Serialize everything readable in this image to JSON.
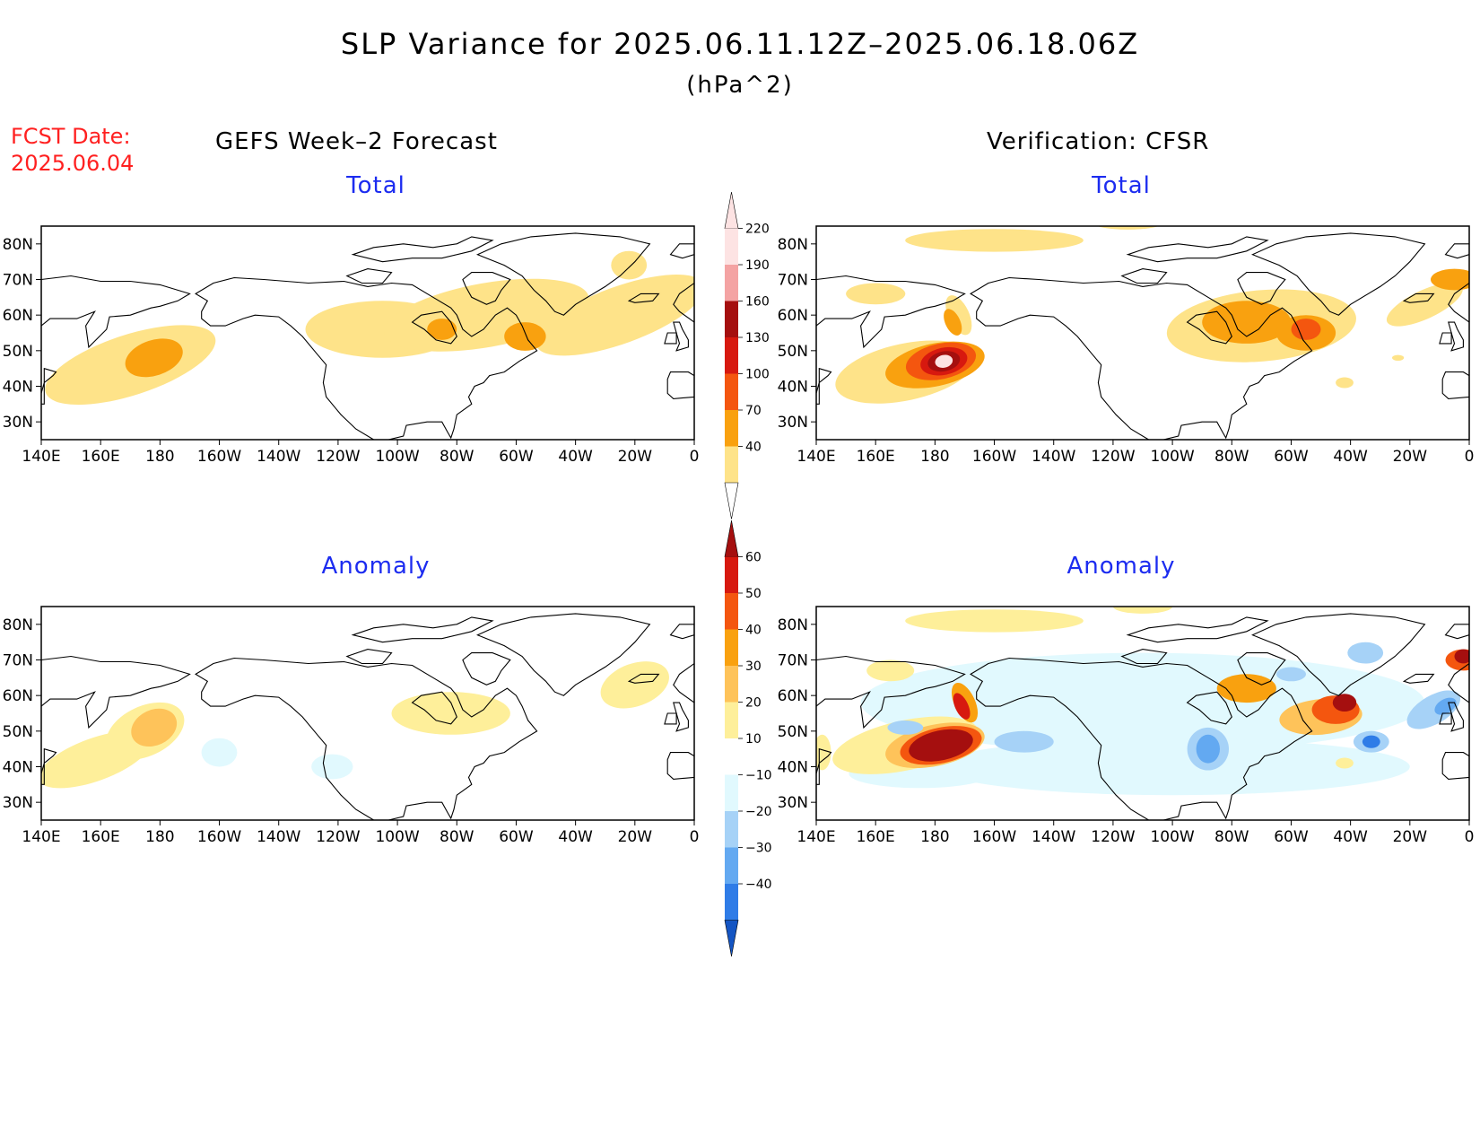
{
  "header": {
    "title": "SLP Variance for 2025.06.11.12Z–2025.06.18.06Z",
    "units": "(hPa^2)",
    "fcst_label": "FCST Date:",
    "fcst_date": "2025.06.04",
    "left_heading": "GEFS Week–2 Forecast",
    "right_heading": "Verification: CFSR"
  },
  "panels": {
    "top_left_title": "Total",
    "top_right_title": "Total",
    "bottom_left_title": "Anomaly",
    "bottom_right_title": "Anomaly"
  },
  "axes": {
    "lon_labels": [
      "140E",
      "160E",
      "180",
      "160W",
      "140W",
      "120W",
      "100W",
      "80W",
      "60W",
      "40W",
      "20W",
      "0"
    ],
    "lat_labels": [
      "80N",
      "70N",
      "60N",
      "50N",
      "40N",
      "30N"
    ],
    "lat_values": [
      80,
      70,
      60,
      50,
      40,
      30
    ],
    "lat_range": [
      25,
      85
    ],
    "lon_range": [
      140,
      360
    ]
  },
  "colorbars": {
    "total": {
      "labels": [
        "220",
        "190",
        "160",
        "130",
        "100",
        "70",
        "40"
      ],
      "colors": [
        "#fde3e3",
        "#f4a3a3",
        "#a50f0f",
        "#d7190f",
        "#f4560f",
        "#f9a10f",
        "#fee389"
      ]
    },
    "anomaly": {
      "labels": [
        "60",
        "50",
        "40",
        "30",
        "20",
        "10",
        "−10",
        "−20",
        "−30",
        "−40"
      ],
      "colors": [
        "#a50f0f",
        "#d7190f",
        "#f4560f",
        "#f9a10f",
        "#fec35a",
        "#feef9a",
        "#ffffff",
        "#e1f9fe",
        "#a6d2f7",
        "#63a9f1",
        "#2f7ce7",
        "#1455c3"
      ]
    }
  },
  "colors": {
    "title_text": "#000000",
    "fcst_text": "#ff2020",
    "panel_title_text": "#1c2cf0"
  }
}
